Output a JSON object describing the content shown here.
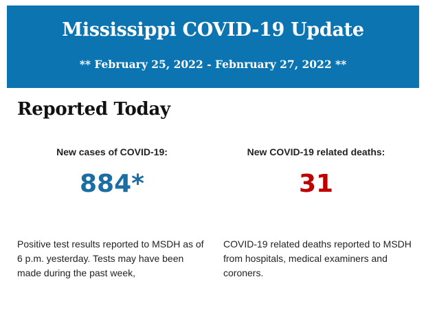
{
  "header": {
    "title": "Mississippi COVID-19 Update",
    "subtitle": "** February 25, 2022 - Febnruary 27, 2022 **"
  },
  "section_title": "Reported Today",
  "cases": {
    "label": "New cases of COVID-19:",
    "value": "884*",
    "color": "#1a6ea3",
    "description": "Positive test results reported to MSDH as of 6 p.m. yesterday. Tests may have been made during the past week,"
  },
  "deaths": {
    "label": "New COVID-19 related deaths:",
    "value": "31",
    "color": "#c00000",
    "description": "COVID-19 related deaths reported to MSDH from hospitals, medical examiners and coroners."
  }
}
